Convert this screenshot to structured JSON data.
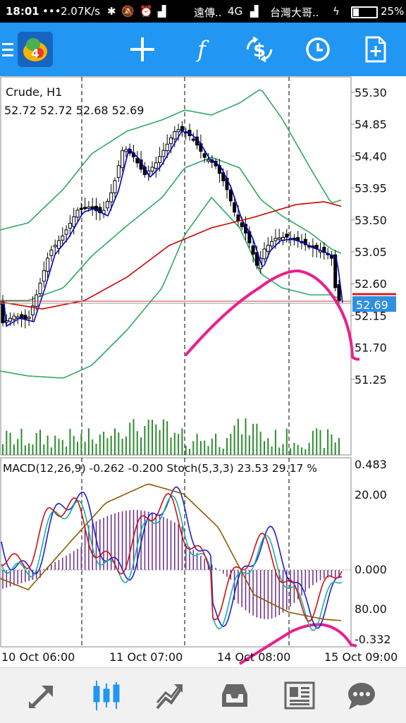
{
  "status": {
    "time": "18:01",
    "speed": "2.07K/s",
    "carrier1": "遠傳..",
    "net": "4G",
    "carrier2": "台灣大哥..",
    "battery": "25%"
  },
  "toolbar": {
    "icons": [
      "menu-icon",
      "app-logo",
      "crosshair-icon",
      "function-icon",
      "currency-exchange-icon",
      "clock-icon",
      "new-order-icon"
    ]
  },
  "chart": {
    "symbol": "Crude, H1",
    "ohlc": "52.72 52.72 52.68 52.69",
    "price_ticks": [
      "55.30",
      "54.85",
      "54.40",
      "53.95",
      "53.50",
      "53.05",
      "52.60",
      "52.15",
      "51.70",
      "51.25"
    ],
    "current_price": "52.69",
    "indicator_label": "MACD(12,26,9) -0.262 -0.200 Stoch(5,3,3) 23.53 29.17 %",
    "indicator_ticks": [
      "0.483",
      "20.00",
      "0.000",
      "80.00",
      "-0.332"
    ],
    "time_labels": [
      "10 Oct 06:00",
      "11 Oct 07:00",
      "14 Oct 08:00",
      "15 Oct 09:00"
    ],
    "colors": {
      "candle": "#000000",
      "ma_fast": "#0000cc",
      "ma_slow": "#cc0000",
      "bands": "#2eaa60",
      "volume": "#2e8b2e",
      "macd_hist": "#6a2a8a",
      "stoch_main": "#1e1ed6",
      "stoch_signal": "#d01010",
      "macd_signal": "#8b5a00",
      "aqua": "#19b2a2",
      "annotation": "#e8208c",
      "price_label": "#2f8fe0"
    }
  },
  "nav": {
    "icons": [
      "quotes-icon",
      "chart-icon",
      "trade-icon",
      "history-icon",
      "news-icon",
      "chat-icon"
    ]
  }
}
